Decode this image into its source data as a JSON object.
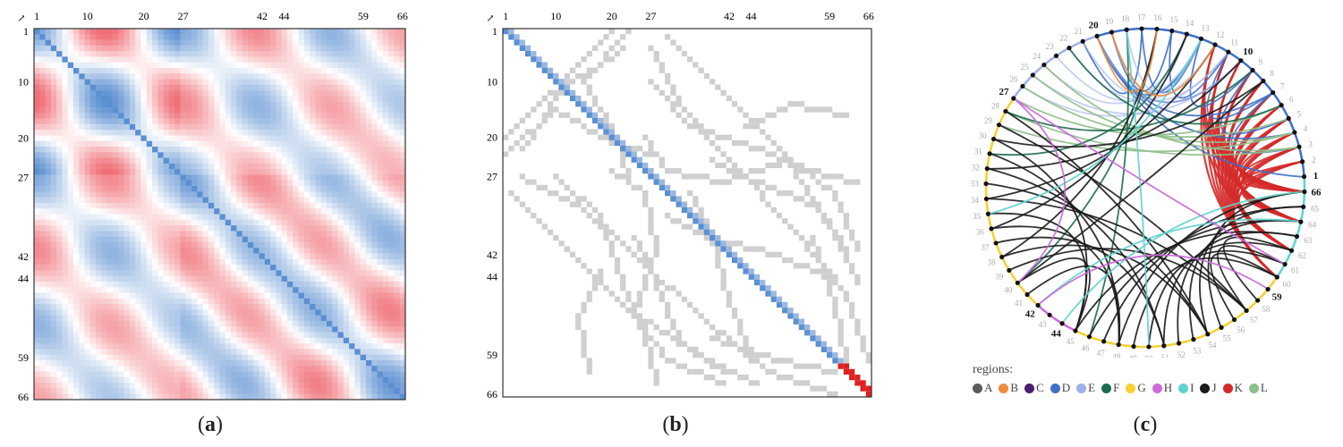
{
  "chart_data": [
    {
      "type": "heatmap",
      "panel": "a",
      "caption": "a",
      "corner_glyph": "↗",
      "n": 66,
      "tick_labels": [
        "1",
        "10",
        "20",
        "27",
        "42",
        "44",
        "59",
        "66"
      ],
      "tick_values": [
        1,
        10,
        20,
        27,
        42,
        44,
        59,
        66
      ],
      "region_bounds": [
        1,
        27,
        66
      ],
      "colors": {
        "low": "#5b8fd1",
        "mid": "#ffffff",
        "high": "#f07078"
      }
    },
    {
      "type": "heatmap",
      "panel": "b",
      "caption": "b",
      "corner_glyph": "↗",
      "n": 66,
      "tick_labels": [
        "1",
        "10",
        "20",
        "27",
        "42",
        "44",
        "59",
        "66"
      ],
      "tick_values": [
        1,
        10,
        20,
        27,
        42,
        44,
        59,
        66
      ],
      "diagonal_red_from": 61,
      "colors": {
        "diag": "#5b8fd1",
        "band": "#cfcfcf",
        "red": "#e02020"
      }
    },
    {
      "type": "chord",
      "panel": "c",
      "caption": "c",
      "n": 66,
      "bold_labels": [
        "1",
        "10",
        "20",
        "27",
        "42",
        "44",
        "59",
        "66"
      ],
      "legend_title": "regions:",
      "regions": [
        {
          "name": "A",
          "color": "#5a5a5a"
        },
        {
          "name": "B",
          "color": "#f08a3c"
        },
        {
          "name": "C",
          "color": "#4b1f6b"
        },
        {
          "name": "D",
          "color": "#3f6fc6"
        },
        {
          "name": "E",
          "color": "#9fb1e6"
        },
        {
          "name": "F",
          "color": "#1e6b52"
        },
        {
          "name": "G",
          "color": "#f4d12e"
        },
        {
          "name": "H",
          "color": "#c86ad8"
        },
        {
          "name": "I",
          "color": "#5fd3cf"
        },
        {
          "name": "J",
          "color": "#1b1b1b"
        },
        {
          "name": "K",
          "color": "#d42a2a"
        },
        {
          "name": "L",
          "color": "#8fbf8a"
        }
      ],
      "node_regions": [
        {
          "from": 1,
          "to": 19,
          "region": "D"
        },
        {
          "from": 20,
          "to": 26,
          "region": "E"
        },
        {
          "from": 27,
          "to": 41,
          "region": "G"
        },
        {
          "from": 42,
          "to": 44,
          "region": "H"
        },
        {
          "from": 45,
          "to": 59,
          "region": "G"
        },
        {
          "from": 60,
          "to": 66,
          "region": "I"
        }
      ]
    }
  ]
}
